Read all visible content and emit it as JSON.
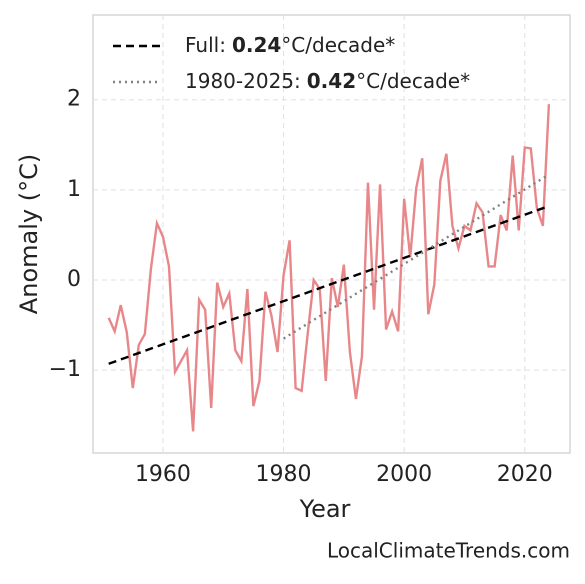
{
  "chart_data": {
    "type": "line",
    "xlabel": "Year",
    "ylabel": "Anomaly (°C)",
    "source": "LocalClimateTrends.com",
    "xlim": [
      1948.4,
      2027.5
    ],
    "ylim": [
      -1.92,
      2.94
    ],
    "xticks": [
      1960,
      1980,
      2000,
      2020
    ],
    "yticks": [
      {
        "value": -1,
        "label": "−1"
      },
      0,
      1,
      2
    ],
    "grid": true,
    "legend": "upper left",
    "series": [
      {
        "color": "#e8878a",
        "style": "solid",
        "x": [
          1951,
          1952,
          1953,
          1954,
          1955,
          1956,
          1957,
          1958,
          1959,
          1960,
          1961,
          1962,
          1963,
          1964,
          1965,
          1966,
          1967,
          1968,
          1969,
          1970,
          1971,
          1972,
          1973,
          1974,
          1975,
          1976,
          1977,
          1978,
          1979,
          1980,
          1981,
          1982,
          1983,
          1984,
          1985,
          1986,
          1987,
          1988,
          1989,
          1990,
          1991,
          1992,
          1993,
          1994,
          1995,
          1996,
          1997,
          1998,
          1999,
          2000,
          2001,
          2002,
          2003,
          2004,
          2005,
          2006,
          2007,
          2008,
          2009,
          2010,
          2011,
          2012,
          2013,
          2014,
          2015,
          2016,
          2017,
          2018,
          2019,
          2020,
          2021,
          2022,
          2023,
          2024
        ],
        "values": [
          -0.42,
          -0.57,
          -0.28,
          -0.58,
          -1.2,
          -0.72,
          -0.6,
          0.12,
          0.63,
          0.48,
          0.15,
          -1.02,
          -0.9,
          -0.78,
          -1.68,
          -0.22,
          -0.33,
          -1.42,
          -0.03,
          -0.3,
          -0.15,
          -0.78,
          -0.9,
          -0.1,
          -1.4,
          -1.12,
          -0.13,
          -0.4,
          -0.8,
          0.05,
          0.44,
          -1.2,
          -1.23,
          -0.6,
          0.0,
          -0.1,
          -1.12,
          0.02,
          -0.3,
          0.17,
          -0.8,
          -1.32,
          -0.85,
          1.08,
          -0.33,
          1.06,
          -0.55,
          -0.35,
          -0.57,
          0.9,
          0.25,
          1.02,
          1.35,
          -0.38,
          -0.05,
          1.1,
          1.4,
          0.6,
          0.35,
          0.6,
          0.55,
          0.85,
          0.75,
          0.15,
          0.15,
          0.72,
          0.55,
          1.38,
          0.55,
          1.47,
          1.46,
          0.8,
          0.6,
          1.95
        ]
      },
      {
        "color": "#000000",
        "style": "dashed",
        "name": "Full:",
        "rate": 0.24,
        "unit": "°C/decade*",
        "x": [
          1951,
          2024
        ],
        "values": [
          -0.93,
          0.82
        ]
      },
      {
        "color": "#808080",
        "style": "dotted",
        "name": "1980-2025:",
        "rate": 0.42,
        "unit": "°C/decade*",
        "x": [
          1980,
          2024
        ],
        "values": [
          -0.65,
          1.17
        ]
      }
    ]
  }
}
